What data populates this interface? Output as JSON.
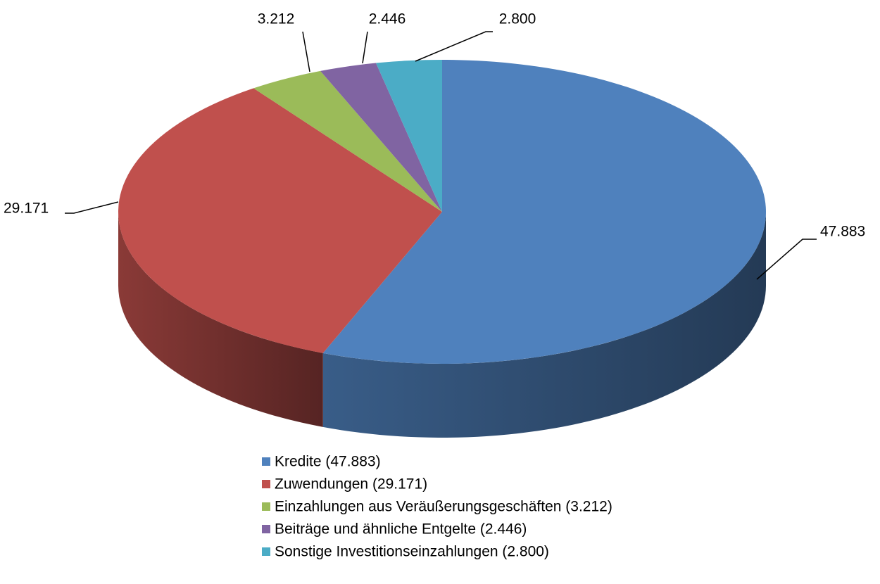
{
  "chart_data": {
    "type": "pie",
    "categories": [
      "Kredite (47.883)",
      "Zuwendungen (29.171)",
      "Einzahlungen aus Veräußerungsgeschäften (3.212)",
      "Beiträge und ähnliche Entgelte (2.446)",
      "Sonstige Investitionseinzahlungen (2.800)"
    ],
    "values": [
      47883,
      29171,
      3212,
      2446,
      2800
    ],
    "value_labels": [
      "47.883",
      "29.171",
      "3.212",
      "2.446",
      "2.800"
    ],
    "colors": [
      "#4f81bd",
      "#c0504d",
      "#9bbb59",
      "#8064a2",
      "#4bacc6"
    ],
    "legend": "bottom"
  }
}
